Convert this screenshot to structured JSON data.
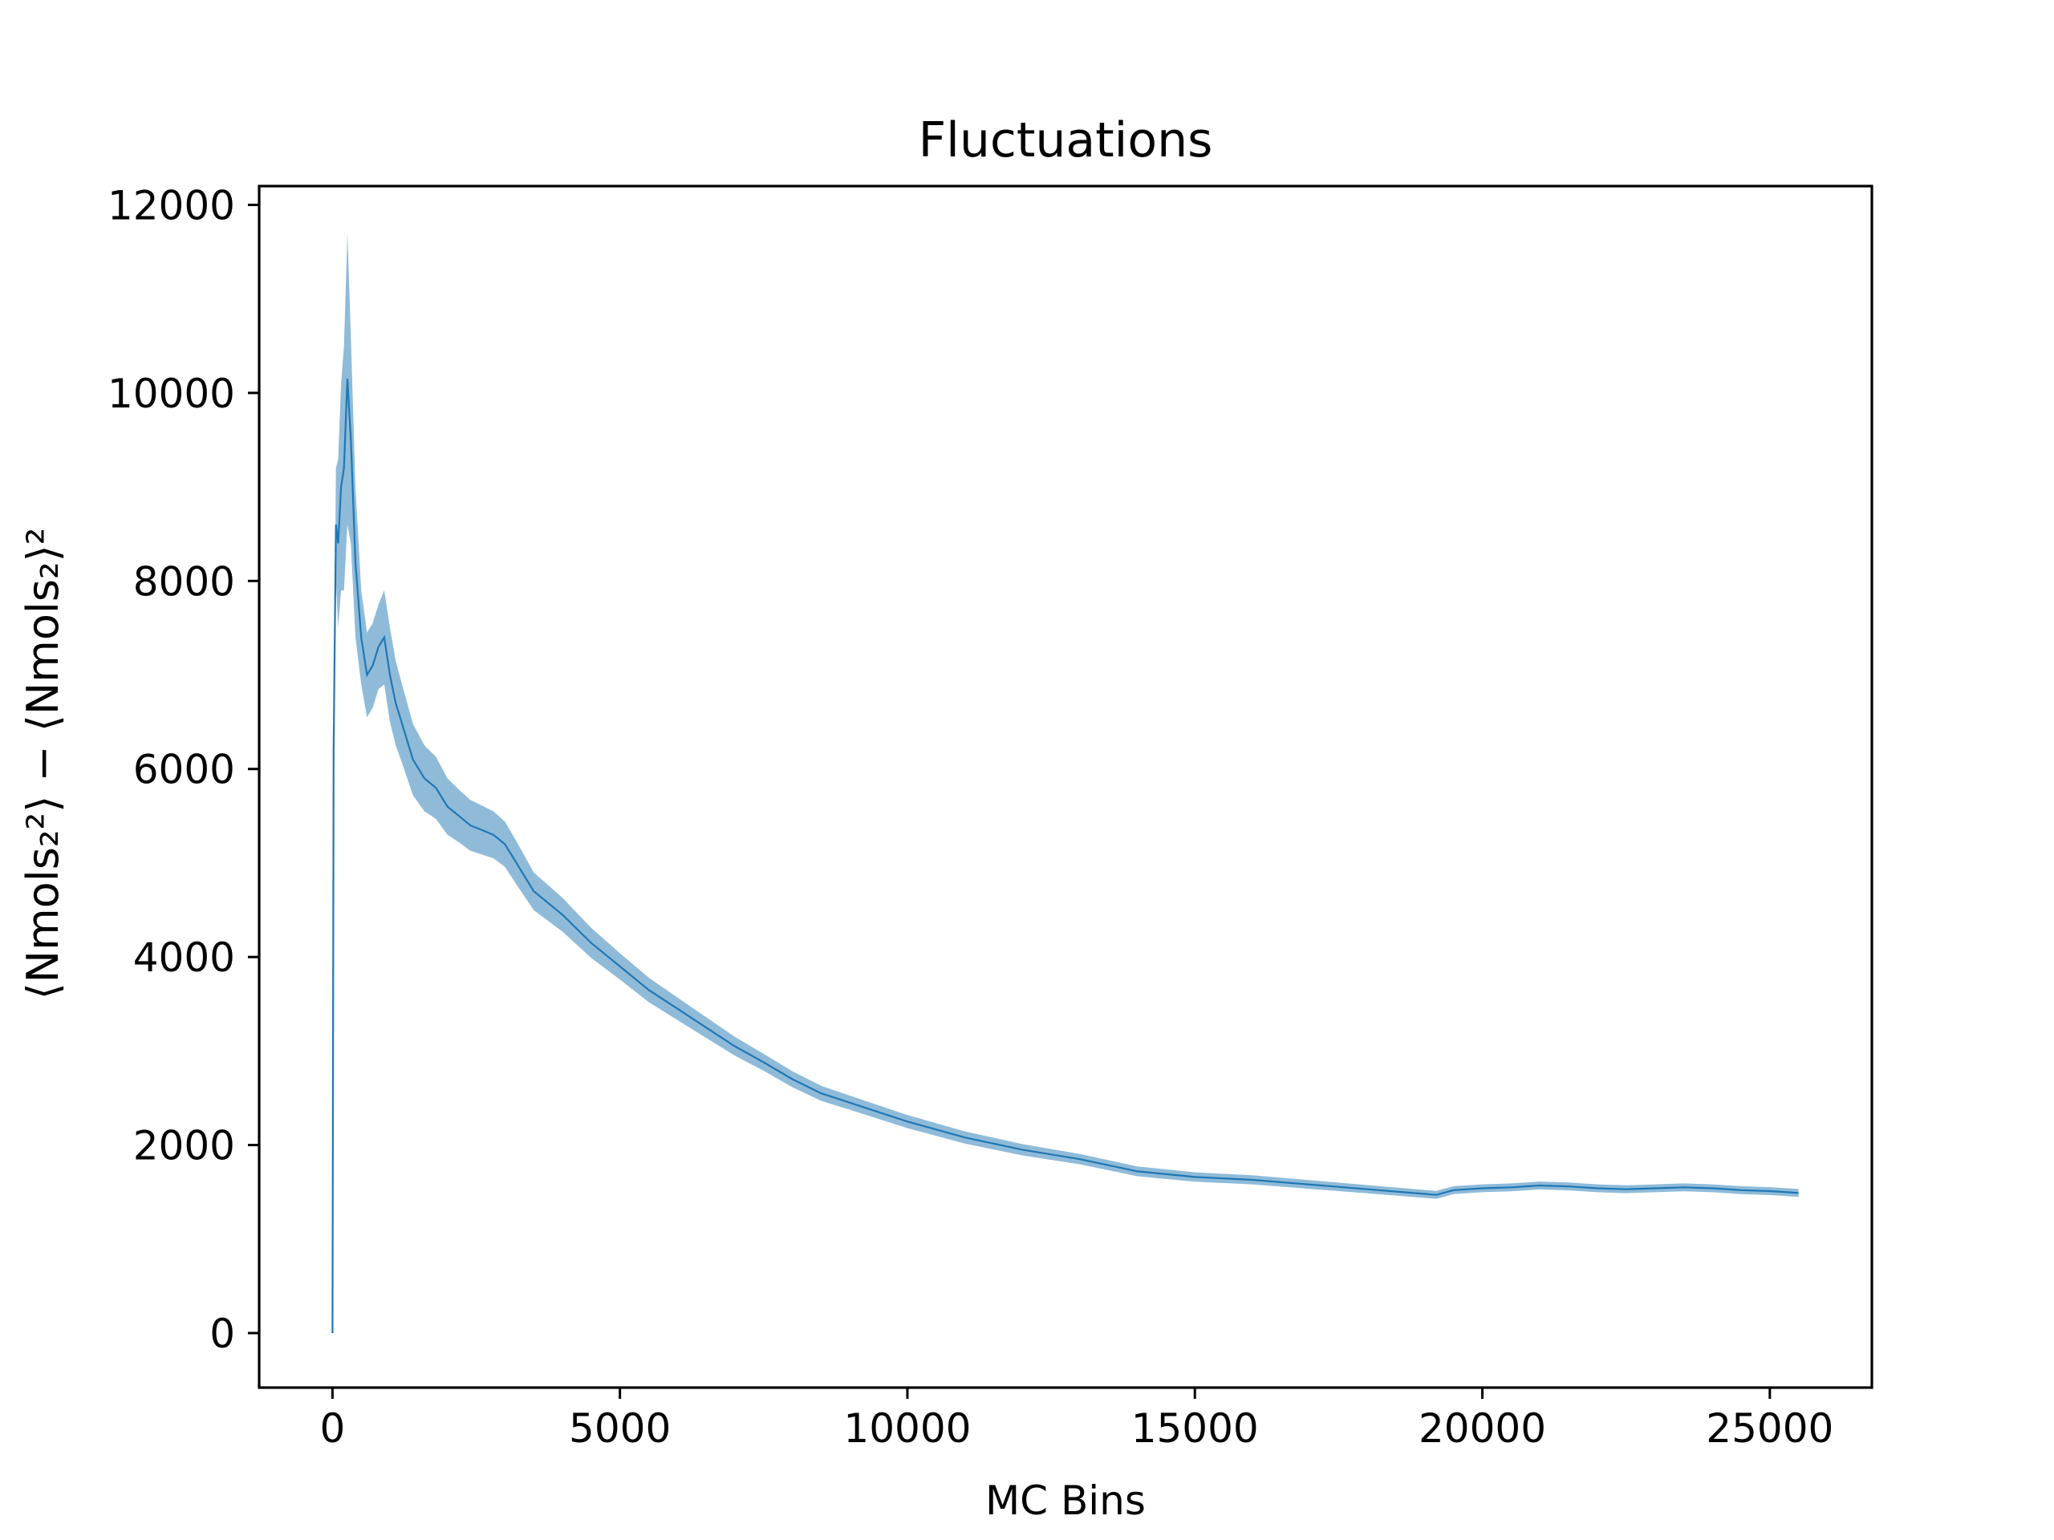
{
  "chart_data": {
    "type": "line",
    "title": "Fluctuations",
    "xlabel": "MC Bins",
    "ylabel": "⟨Nmols₂²⟩ − ⟨Nmols₂⟩²",
    "xlim": [
      -1275,
      26775
    ],
    "ylim": [
      -580,
      12200
    ],
    "xticks": [
      0,
      5000,
      10000,
      15000,
      20000,
      25000
    ],
    "yticks": [
      0,
      2000,
      4000,
      6000,
      8000,
      10000,
      12000
    ],
    "grid": false,
    "colors": {
      "line": "#1f77b4",
      "band": "#1f77b4"
    },
    "series": [
      {
        "x": [
          0,
          20,
          60,
          100,
          150,
          200,
          260,
          320,
          400,
          500,
          600,
          700,
          800,
          900,
          1000,
          1100,
          1200,
          1400,
          1600,
          1800,
          2000,
          2200,
          2400,
          2600,
          2800,
          3000,
          3200,
          3500,
          4000,
          4500,
          5000,
          5500,
          6000,
          6500,
          7000,
          7500,
          8000,
          8500,
          9000,
          10000,
          11000,
          12000,
          13000,
          14000,
          15000,
          16000,
          17000,
          18000,
          19000,
          19200,
          19500,
          20000,
          20500,
          21000,
          21500,
          22000,
          22500,
          23000,
          23500,
          24000,
          24500,
          25000,
          25500
        ],
        "y": [
          0,
          6200,
          8600,
          8400,
          9000,
          9200,
          10150,
          9500,
          8200,
          7400,
          7000,
          7100,
          7300,
          7400,
          7000,
          6700,
          6500,
          6100,
          5900,
          5800,
          5600,
          5500,
          5400,
          5350,
          5300,
          5200,
          5000,
          4700,
          4450,
          4150,
          3900,
          3650,
          3450,
          3250,
          3050,
          2880,
          2700,
          2550,
          2450,
          2250,
          2080,
          1950,
          1850,
          1720,
          1660,
          1630,
          1580,
          1530,
          1480,
          1470,
          1520,
          1540,
          1550,
          1570,
          1560,
          1540,
          1530,
          1540,
          1550,
          1540,
          1520,
          1510,
          1490
        ],
        "err": [
          0,
          250,
          600,
          900,
          1100,
          1300,
          1550,
          1100,
          800,
          500,
          450,
          450,
          450,
          500,
          500,
          450,
          420,
          380,
          350,
          330,
          300,
          280,
          270,
          260,
          250,
          240,
          230,
          200,
          180,
          160,
          140,
          130,
          120,
          110,
          100,
          90,
          85,
          80,
          75,
          70,
          65,
          60,
          55,
          52,
          50,
          48,
          46,
          44,
          42,
          42,
          42,
          42,
          42,
          42,
          42,
          42,
          42,
          42,
          42,
          42,
          42,
          42,
          42
        ]
      }
    ]
  }
}
